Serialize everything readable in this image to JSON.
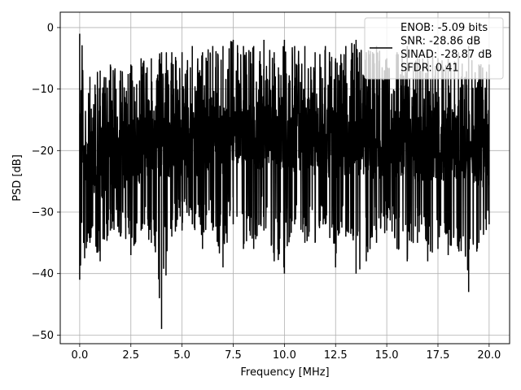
{
  "chart_data": {
    "type": "line",
    "title": "",
    "xlabel": "Frequency [MHz]",
    "ylabel": "PSD [dB]",
    "xlim": [
      -0.95,
      21.0
    ],
    "ylim": [
      -51.4,
      2.5
    ],
    "xticks": [
      0.0,
      2.5,
      5.0,
      7.5,
      10.0,
      12.5,
      15.0,
      17.5,
      20.0
    ],
    "xtick_labels": [
      "0.0",
      "2.5",
      "5.0",
      "7.5",
      "10.0",
      "12.5",
      "15.0",
      "17.5",
      "20.0"
    ],
    "yticks": [
      0,
      -10,
      -20,
      -30,
      -40,
      -50
    ],
    "ytick_labels": [
      "0",
      "−10",
      "−20",
      "−30",
      "−40",
      "−50"
    ],
    "grid": true,
    "legend_position": "top-right",
    "line_color": "#000000",
    "series": [
      {
        "name": "",
        "legend_lines": [
          "ENOB: -5.09 bits",
          "SNR: -28.86 dB",
          "SINAD: -28.87 dB",
          "SFDR: 0.41"
        ],
        "x": [
          0.0,
          0.5,
          1.0,
          1.5,
          2.0,
          2.5,
          3.0,
          3.5,
          4.0,
          4.5,
          5.0,
          5.5,
          6.0,
          6.5,
          7.0,
          7.5,
          8.0,
          8.5,
          9.0,
          9.5,
          10.0,
          10.5,
          11.0,
          11.5,
          12.0,
          12.5,
          13.0,
          13.5,
          14.0,
          14.5,
          15.0,
          15.5,
          16.0,
          16.5,
          17.0,
          17.5,
          18.0,
          18.5,
          19.0,
          19.5,
          20.0
        ],
        "upper": [
          -1,
          -8,
          -7,
          -6,
          -7,
          -6,
          -5,
          -5,
          -4,
          -4,
          -4,
          -3,
          -4,
          -3,
          -3,
          -2,
          -3,
          -3,
          -2,
          -4,
          -2,
          -3,
          -3,
          -4,
          -3,
          -5,
          -3,
          -2,
          -4,
          -3,
          -5,
          -4,
          -3,
          -5,
          -4,
          -5,
          -5,
          -4,
          -3,
          -6,
          -6
        ],
        "lower": [
          -41,
          -35,
          -38,
          -33,
          -34,
          -37,
          -33,
          -35,
          -49,
          -34,
          -33,
          -32,
          -36,
          -33,
          -39,
          -32,
          -36,
          -36,
          -33,
          -38,
          -40,
          -32,
          -35,
          -35,
          -32,
          -39,
          -34,
          -40,
          -38,
          -35,
          -33,
          -36,
          -38,
          -35,
          -38,
          -36,
          -37,
          -36,
          -43,
          -35,
          -32
        ],
        "band_top": [
          -14,
          -16,
          -16,
          -15,
          -14,
          -15,
          -13,
          -14,
          -12,
          -13,
          -12,
          -13,
          -12,
          -11,
          -12,
          -11,
          -11,
          -12,
          -11,
          -12,
          -11,
          -12,
          -11,
          -12,
          -12,
          -13,
          -12,
          -12,
          -12,
          -13,
          -12,
          -13,
          -12,
          -13,
          -13,
          -13,
          -13,
          -13,
          -13,
          -14,
          -14
        ],
        "band_bottom": [
          -24,
          -27,
          -28,
          -27,
          -26,
          -27,
          -25,
          -26,
          -24,
          -25,
          -24,
          -25,
          -24,
          -23,
          -24,
          -23,
          -23,
          -24,
          -23,
          -24,
          -23,
          -24,
          -23,
          -24,
          -24,
          -25,
          -24,
          -24,
          -24,
          -25,
          -24,
          -25,
          -24,
          -25,
          -25,
          -25,
          -25,
          -25,
          -25,
          -26,
          -26
        ]
      }
    ]
  }
}
